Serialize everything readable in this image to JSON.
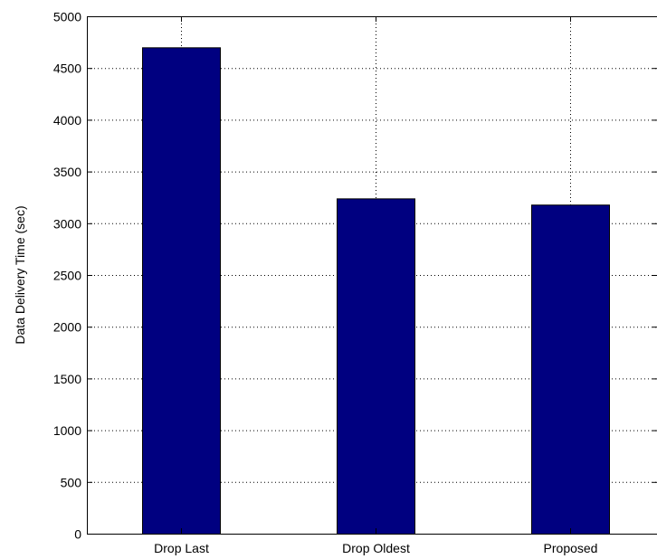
{
  "chart_data": {
    "type": "bar",
    "title": "",
    "xlabel": "",
    "ylabel": "Data Delivery Time (sec)",
    "categories": [
      "Drop Last",
      "Drop Oldest",
      "Proposed"
    ],
    "values": [
      4700,
      3240,
      3180
    ],
    "ylim": [
      0,
      5000
    ],
    "yticks": [
      "0",
      "500",
      "1000",
      "1500",
      "2000",
      "2500",
      "3000",
      "3500",
      "4000",
      "4500",
      "5000"
    ],
    "grid": true,
    "grid_style": "dotted",
    "bar_color": "#000080"
  }
}
